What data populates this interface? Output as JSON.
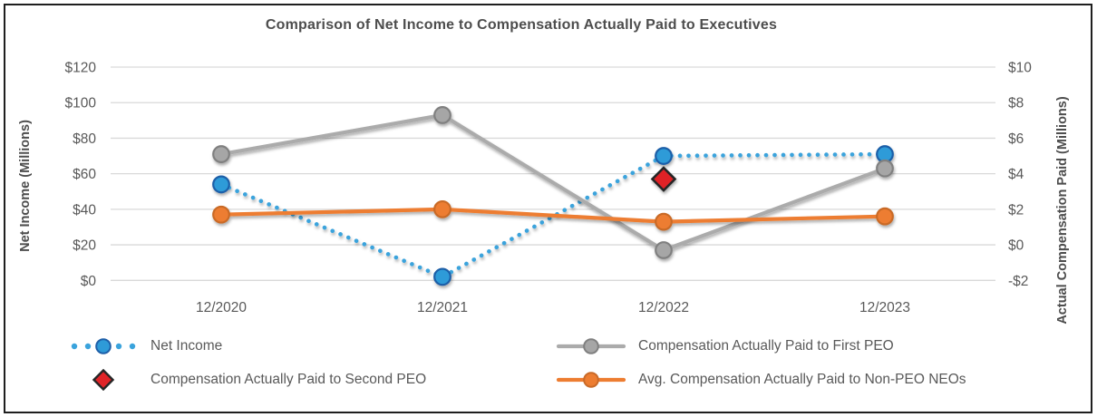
{
  "chart_data": {
    "type": "line",
    "title": "Comparison of Net Income to Compensation Actually Paid to Executives",
    "categories": [
      "12/2020",
      "12/2021",
      "12/2022",
      "12/2023"
    ],
    "left_axis": {
      "label": "Net Income (Millions)",
      "tick_labels": [
        "$120",
        "$100",
        "$80",
        "$60",
        "$40",
        "$20",
        "$0"
      ],
      "tick_values": [
        120,
        100,
        80,
        60,
        40,
        20,
        0
      ],
      "min": 0,
      "max": 120
    },
    "right_axis": {
      "label": "Actual Compensation Paid (Millions)",
      "tick_labels": [
        "$10",
        "$8",
        "$6",
        "$4",
        "$2",
        "$0",
        "-$2"
      ],
      "tick_values": [
        10,
        8,
        6,
        4,
        2,
        0,
        -2
      ],
      "min": -2,
      "max": 10
    },
    "series": [
      {
        "name": "Net Income",
        "axis": "left",
        "values": [
          54,
          2,
          70,
          71
        ],
        "line_style": "dotted",
        "marker": "circle",
        "line_color": "#3AA3DC",
        "marker_fill": "#2E9BD8",
        "marker_border": "#1E5FA8"
      },
      {
        "name": "Compensation Actually Paid to First PEO",
        "axis": "right",
        "values": [
          5.1,
          7.3,
          -0.3,
          4.3
        ],
        "line_style": "solid",
        "marker": "circle",
        "line_color": "#ABABAB",
        "marker_fill": "#A6A6A6",
        "marker_border": "#808080"
      },
      {
        "name": "Compensation Actually Paid to Second PEO",
        "axis": "right",
        "values": [
          null,
          null,
          3.7,
          null
        ],
        "line_style": "none",
        "marker": "diamond",
        "line_color": "#E02428",
        "marker_fill": "#E02428",
        "marker_border": "#262626"
      },
      {
        "name": "Avg. Compensation Actually Paid to Non-PEO NEOs",
        "axis": "right",
        "values": [
          1.7,
          2.0,
          1.3,
          1.6
        ],
        "line_style": "solid",
        "marker": "circle",
        "line_color": "#ED7D31",
        "marker_fill": "#ED7D31",
        "marker_border": "#C96A28"
      }
    ],
    "grid": true,
    "legend_position": "bottom",
    "colors": {
      "gridline": "#D9D9D9",
      "tick_text": "#595959",
      "axis_title_text": "#4d4d4d",
      "title_text": "#4d4d4d",
      "frame_border": "#1f1f1f"
    }
  }
}
